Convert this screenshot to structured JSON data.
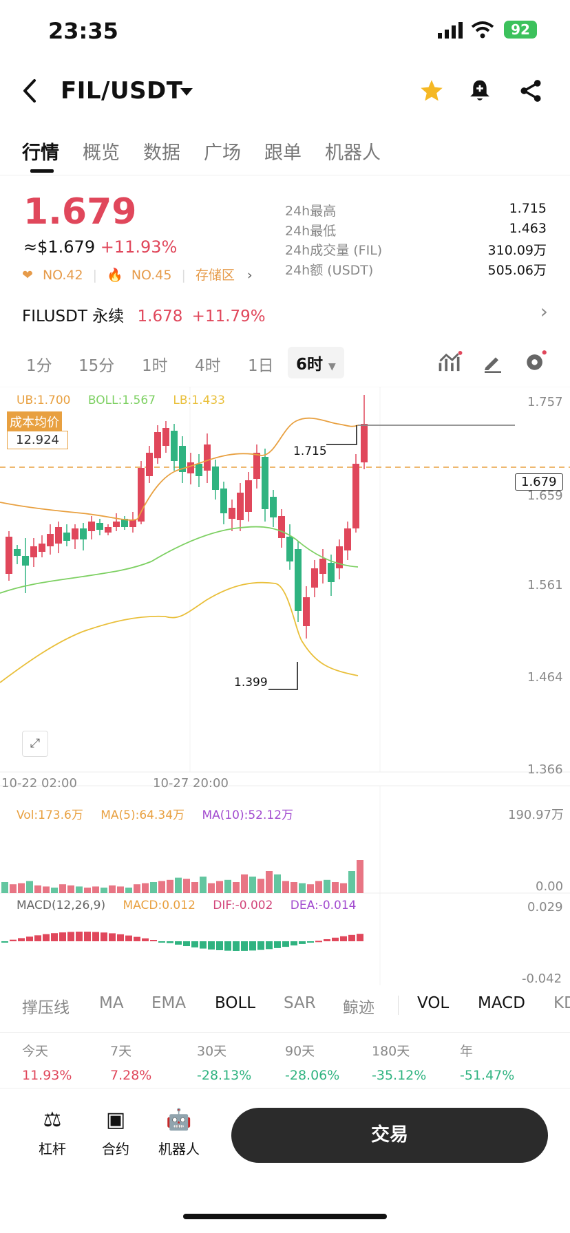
{
  "status_bar": {
    "time": "23:35",
    "battery": "92"
  },
  "header": {
    "pair": "FIL/USDT"
  },
  "tabs": [
    "行情",
    "概览",
    "数据",
    "广场",
    "跟单",
    "机器人"
  ],
  "price": {
    "last": "1.679",
    "usd": "≈$1.679",
    "change": "+11.93%",
    "rank1": "NO.42",
    "rank2": "NO.45",
    "zone": "存储区"
  },
  "stats": [
    {
      "k": "24h最高",
      "v": "1.715"
    },
    {
      "k": "24h最低",
      "v": "1.463"
    },
    {
      "k": "24h成交量 (FIL)",
      "v": "310.09万"
    },
    {
      "k": "24h额 (USDT)",
      "v": "505.06万"
    }
  ],
  "perp": {
    "name": "FILUSDT 永续",
    "price": "1.678",
    "change": "+11.79%"
  },
  "timeframes": [
    "1分",
    "15分",
    "1时",
    "4时",
    "1日",
    "6时"
  ],
  "boll": {
    "ub": "UB:1.700",
    "boll": "BOLL:1.567",
    "lb": "LB:1.433"
  },
  "cost": {
    "label": "成本均价",
    "value": "12.924"
  },
  "price_axis": [
    "1.757",
    "1.659",
    "1.561",
    "1.464",
    "1.366"
  ],
  "current_price_tag": "1.679",
  "high_label": "1.715",
  "low_label": "1.399",
  "time_axis": [
    "10-22 02:00",
    "10-27 20:00"
  ],
  "vol": {
    "vol": "Vol:173.6万",
    "ma5": "MA(5):64.34万",
    "ma10": "MA(10):52.12万",
    "top": "190.97万",
    "bottom": "0.00"
  },
  "macd": {
    "label": "MACD(12,26,9)",
    "macd": "MACD:0.012",
    "dif": "DIF:-0.002",
    "dea": "DEA:-0.014",
    "top": "0.029",
    "bottom": "-0.042"
  },
  "indicators": [
    "撑压线",
    "MA",
    "EMA",
    "BOLL",
    "SAR",
    "鲸迹",
    "VOL",
    "MACD",
    "KD"
  ],
  "performance": [
    {
      "label": "今天",
      "value": "11.93%"
    },
    {
      "label": "7天",
      "value": "7.28%"
    },
    {
      "label": "30天",
      "value": "-28.13%"
    },
    {
      "label": "90天",
      "value": "-28.06%"
    },
    {
      "label": "180天",
      "value": "-35.12%"
    },
    {
      "label": "年",
      "value": "-51.47%"
    }
  ],
  "bottom_nav": [
    "杠杆",
    "合约",
    "机器人"
  ],
  "trade_button": "交易",
  "colors": {
    "up": "#e0475b",
    "down": "#2fb380",
    "accent": "#f0a93a"
  }
}
